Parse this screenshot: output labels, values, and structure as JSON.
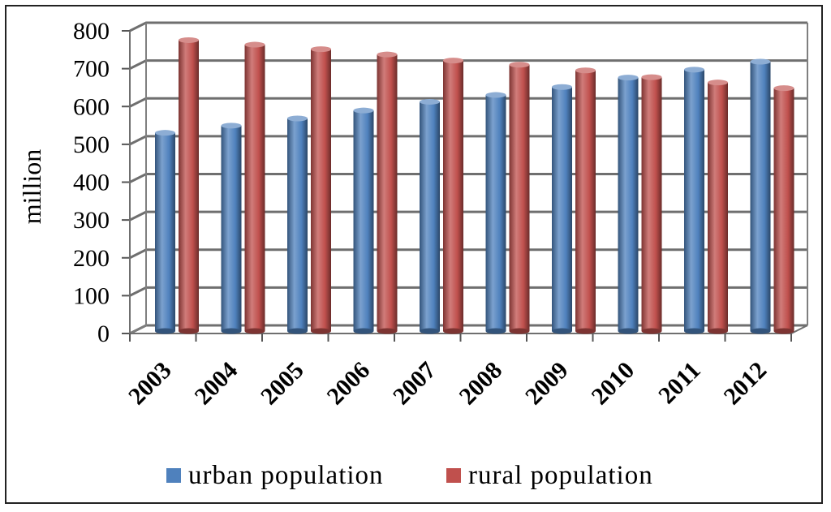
{
  "chart_data": {
    "type": "bar",
    "title": "",
    "xlabel": "",
    "ylabel": "million",
    "categories": [
      "2003",
      "2004",
      "2005",
      "2006",
      "2007",
      "2008",
      "2009",
      "2010",
      "2011",
      "2012"
    ],
    "series": [
      {
        "name": "urban population",
        "color": "#4f81bd",
        "values": [
          524,
          543,
          562,
          583,
          606,
          624,
          645,
          670,
          691,
          712
        ]
      },
      {
        "name": "rural population",
        "color": "#c0504d",
        "values": [
          769,
          757,
          745,
          731,
          715,
          704,
          689,
          671,
          657,
          642
        ]
      }
    ],
    "ylim": [
      0,
      800
    ],
    "yticks": [
      "0",
      "100",
      "200",
      "300",
      "400",
      "500",
      "600",
      "700",
      "800"
    ],
    "grid": true,
    "legend": "bottom"
  }
}
